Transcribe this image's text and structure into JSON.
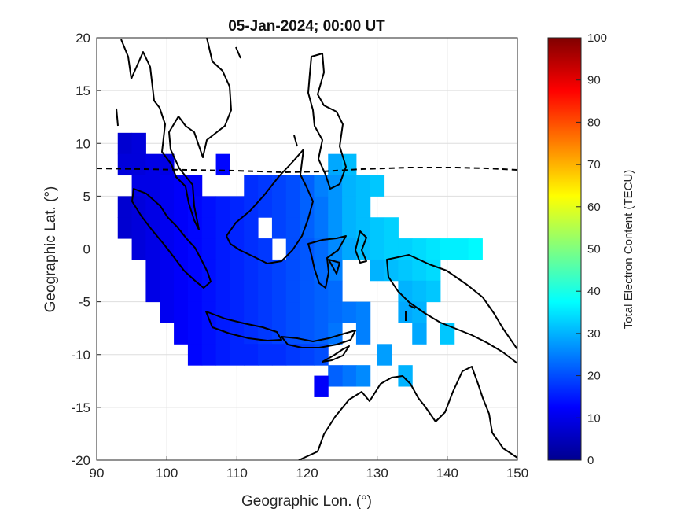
{
  "chart_data": {
    "type": "heatmap",
    "title": "05-Jan-2024; 00:00 UT",
    "xlabel": "Geographic Lon. (°)",
    "ylabel": "Geographic Lat. (°)",
    "xlim": [
      90,
      150
    ],
    "ylim": [
      -20,
      20
    ],
    "xticks": [
      90,
      100,
      110,
      120,
      130,
      140,
      150
    ],
    "yticks": [
      20,
      15,
      10,
      5,
      0,
      -5,
      -10,
      -15,
      -20
    ],
    "grid": true,
    "colorbar": {
      "label": "Total Electron Content (TECU)",
      "range": [
        0,
        100
      ],
      "ticks": [
        100,
        90,
        80,
        70,
        60,
        50,
        40,
        30,
        20,
        10,
        0
      ],
      "colormap": "jet"
    },
    "cell_size_deg": [
      2,
      2
    ],
    "tec_cells": [
      [
        94,
        10,
        8
      ],
      [
        96,
        10,
        9
      ],
      [
        94,
        8,
        9
      ],
      [
        96,
        8,
        9
      ],
      [
        98,
        8,
        10
      ],
      [
        100,
        8,
        10
      ],
      [
        96,
        6,
        10
      ],
      [
        98,
        6,
        10
      ],
      [
        100,
        6,
        11
      ],
      [
        102,
        6,
        12
      ],
      [
        104,
        6,
        12
      ],
      [
        94,
        4,
        8
      ],
      [
        96,
        4,
        9
      ],
      [
        98,
        4,
        10
      ],
      [
        100,
        4,
        11
      ],
      [
        102,
        4,
        12
      ],
      [
        104,
        4,
        13
      ],
      [
        106,
        4,
        14
      ],
      [
        94,
        2,
        8
      ],
      [
        96,
        2,
        9
      ],
      [
        98,
        2,
        10
      ],
      [
        100,
        2,
        11
      ],
      [
        102,
        2,
        12
      ],
      [
        104,
        2,
        13
      ],
      [
        106,
        2,
        14
      ],
      [
        108,
        2,
        15
      ],
      [
        110,
        2,
        16
      ],
      [
        112,
        2,
        17
      ],
      [
        96,
        0,
        9
      ],
      [
        98,
        0,
        10
      ],
      [
        100,
        0,
        11
      ],
      [
        102,
        0,
        12
      ],
      [
        104,
        0,
        13
      ],
      [
        106,
        0,
        14
      ],
      [
        108,
        0,
        15
      ],
      [
        110,
        0,
        16
      ],
      [
        112,
        0,
        17
      ],
      [
        114,
        0,
        18
      ],
      [
        98,
        -2,
        10
      ],
      [
        100,
        -2,
        11
      ],
      [
        102,
        -2,
        12
      ],
      [
        104,
        -2,
        13
      ],
      [
        106,
        -2,
        14
      ],
      [
        108,
        -2,
        15
      ],
      [
        110,
        -2,
        16
      ],
      [
        112,
        -2,
        17
      ],
      [
        114,
        -2,
        18
      ],
      [
        98,
        -4,
        10
      ],
      [
        100,
        -4,
        11
      ],
      [
        102,
        -4,
        12
      ],
      [
        104,
        -4,
        13
      ],
      [
        106,
        -4,
        14
      ],
      [
        108,
        -4,
        15
      ],
      [
        110,
        -4,
        16
      ],
      [
        112,
        -4,
        17
      ],
      [
        114,
        -4,
        18
      ],
      [
        116,
        -4,
        19
      ],
      [
        100,
        -6,
        11
      ],
      [
        102,
        -6,
        12
      ],
      [
        104,
        -6,
        13
      ],
      [
        106,
        -6,
        14
      ],
      [
        108,
        -6,
        15
      ],
      [
        110,
        -6,
        16
      ],
      [
        112,
        -6,
        17
      ],
      [
        114,
        -6,
        18
      ],
      [
        116,
        -6,
        19
      ],
      [
        118,
        -6,
        20
      ],
      [
        120,
        -6,
        21
      ],
      [
        102,
        -8,
        12
      ],
      [
        104,
        -8,
        13
      ],
      [
        106,
        -8,
        14
      ],
      [
        108,
        -8,
        15
      ],
      [
        110,
        -8,
        16
      ],
      [
        112,
        -8,
        17
      ],
      [
        114,
        -8,
        18
      ],
      [
        116,
        -8,
        19
      ],
      [
        118,
        -8,
        20
      ],
      [
        120,
        -8,
        21
      ],
      [
        122,
        -8,
        22
      ],
      [
        124,
        -8,
        24
      ],
      [
        104,
        -10,
        13
      ],
      [
        106,
        -10,
        14
      ],
      [
        108,
        -10,
        15
      ],
      [
        110,
        -10,
        16
      ],
      [
        112,
        -10,
        16
      ],
      [
        114,
        -10,
        17
      ],
      [
        116,
        -10,
        17
      ],
      [
        118,
        -10,
        18
      ],
      [
        120,
        -10,
        19
      ],
      [
        122,
        -10,
        20
      ],
      [
        108,
        4,
        15
      ],
      [
        110,
        4,
        16
      ],
      [
        112,
        4,
        17
      ],
      [
        114,
        4,
        18
      ],
      [
        116,
        4,
        19
      ],
      [
        118,
        4,
        20
      ],
      [
        112,
        6,
        17
      ],
      [
        114,
        6,
        18
      ],
      [
        116,
        6,
        19
      ],
      [
        118,
        6,
        20
      ],
      [
        120,
        6,
        22
      ],
      [
        116,
        2,
        19
      ],
      [
        118,
        2,
        20
      ],
      [
        120,
        2,
        22
      ],
      [
        122,
        2,
        24
      ],
      [
        124,
        2,
        27
      ],
      [
        126,
        2,
        30
      ],
      [
        118,
        0,
        20
      ],
      [
        120,
        0,
        21
      ],
      [
        122,
        0,
        23
      ],
      [
        124,
        0,
        26
      ],
      [
        126,
        0,
        29
      ],
      [
        128,
        0,
        31
      ],
      [
        116,
        -2,
        19
      ],
      [
        118,
        -2,
        20
      ],
      [
        120,
        -2,
        21
      ],
      [
        122,
        -2,
        23
      ],
      [
        124,
        -2,
        25
      ],
      [
        118,
        -4,
        20
      ],
      [
        120,
        -4,
        21
      ],
      [
        122,
        -4,
        22
      ],
      [
        124,
        -4,
        23
      ],
      [
        122,
        -6,
        22
      ],
      [
        124,
        -6,
        23
      ],
      [
        126,
        -6,
        24
      ],
      [
        128,
        -6,
        25
      ],
      [
        120,
        4,
        22
      ],
      [
        122,
        4,
        24
      ],
      [
        124,
        4,
        27
      ],
      [
        126,
        4,
        30
      ],
      [
        128,
        4,
        31
      ],
      [
        122,
        6,
        25
      ],
      [
        124,
        6,
        27
      ],
      [
        126,
        6,
        30
      ],
      [
        128,
        6,
        31
      ],
      [
        130,
        6,
        32
      ],
      [
        124,
        8,
        29
      ],
      [
        126,
        8,
        31
      ],
      [
        108,
        8,
        13
      ],
      [
        128,
        2,
        31
      ],
      [
        130,
        2,
        32
      ],
      [
        132,
        2,
        33
      ],
      [
        130,
        0,
        32
      ],
      [
        132,
        0,
        33
      ],
      [
        134,
        0,
        33
      ],
      [
        136,
        0,
        34
      ],
      [
        138,
        0,
        35
      ],
      [
        140,
        0,
        36
      ],
      [
        142,
        0,
        36
      ],
      [
        144,
        0,
        37
      ],
      [
        130,
        -2,
        30
      ],
      [
        132,
        -2,
        31
      ],
      [
        134,
        -2,
        32
      ],
      [
        136,
        -2,
        33
      ],
      [
        138,
        -2,
        34
      ],
      [
        134,
        -4,
        30
      ],
      [
        136,
        -4,
        31
      ],
      [
        138,
        -4,
        32
      ],
      [
        134,
        -6,
        29
      ],
      [
        136,
        -6,
        30
      ],
      [
        128,
        -8,
        25
      ],
      [
        136,
        -8,
        29
      ],
      [
        126,
        -12,
        24
      ],
      [
        128,
        -12,
        26
      ],
      [
        124,
        -12,
        22
      ],
      [
        122,
        -13,
        12
      ],
      [
        131,
        -10,
        28
      ],
      [
        134,
        -12,
        30
      ],
      [
        140,
        -8,
        32
      ]
    ]
  }
}
